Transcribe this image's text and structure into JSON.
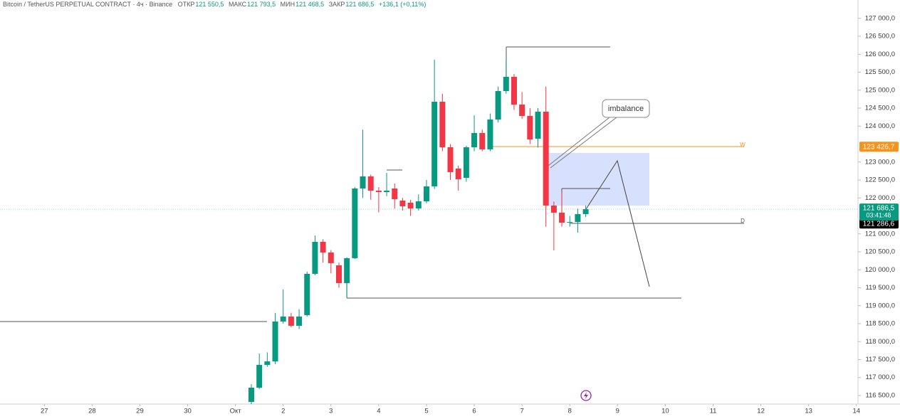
{
  "chart_data": {
    "type": "candlestick",
    "title": "Bitcoin / TetherUS PERPETUAL CONTRACT · 4ч · Binance",
    "legend": {
      "open_label": "ОТКР",
      "open": "121 550,5",
      "high_label": "МАКС",
      "high": "121 793,5",
      "low_label": "МИН",
      "low": "121 468,5",
      "close_label": "ЗАКР",
      "close": "121 686,5",
      "change": "+136,1 (+0,11%)"
    },
    "up_color": "#089981",
    "down_color": "#f23645",
    "open": [
      116322,
      116718,
      117352,
      117450,
      118560,
      118699,
      118441,
      118738,
      119887,
      120778,
      120481,
      120124,
      119629,
      120322,
      122263,
      122599,
      122203,
      122163,
      122263,
      121926,
      121867,
      121708,
      121906,
      122322,
      124678,
      123411,
      122817,
      122560,
      123411,
      123807,
      123352,
      124183,
      124975,
      125371,
      124599,
      124282,
      123649,
      124401,
      121788,
      121590,
      121312,
      121330,
      121550.5
    ],
    "high": [
      116817,
      117670,
      117700,
      118800,
      119450,
      118800,
      118900,
      119950,
      120950,
      120850,
      120550,
      120200,
      120350,
      122300,
      123900,
      122650,
      122300,
      122700,
      122400,
      122000,
      121950,
      122100,
      122500,
      125850,
      124900,
      123500,
      122900,
      123450,
      124300,
      123900,
      124350,
      125100,
      125850,
      125450,
      124950,
      124500,
      124500,
      125100,
      121900,
      122150,
      121500,
      121700,
      121793.5
    ],
    "low": [
      116262,
      116680,
      117300,
      117372,
      118500,
      118400,
      118350,
      118700,
      119850,
      120200,
      119900,
      119500,
      119213,
      120300,
      122000,
      121950,
      121600,
      122050,
      121700,
      121650,
      121500,
      121650,
      121850,
      122250,
      123300,
      122500,
      122200,
      122450,
      123300,
      123300,
      123300,
      124100,
      124900,
      124450,
      124200,
      123500,
      123400,
      121200,
      120540,
      121200,
      121200,
      121035,
      121468.5
    ],
    "close": [
      116718,
      117352,
      117450,
      118560,
      118699,
      118441,
      118699,
      119887,
      120778,
      120481,
      120184,
      119629,
      120322,
      122263,
      122599,
      122203,
      122163,
      122203,
      121966,
      121768,
      121708,
      121906,
      122322,
      124678,
      123411,
      122718,
      122520,
      123411,
      123807,
      123352,
      124183,
      124975,
      125371,
      124599,
      124282,
      123629,
      124401,
      121788,
      121590,
      121312,
      121330,
      121550,
      121686.5
    ],
    "close_label": "121 686,5",
    "countdown": "03:41:48",
    "price_labels": [
      {
        "value": 123426.7,
        "label": "123 426,7",
        "color": "#f7931a"
      },
      {
        "value": 121286.6,
        "label": "121 286,6",
        "color": "#000000"
      }
    ],
    "annotations": {
      "imbalance": "imbalance",
      "weekly": "W",
      "daily": "D"
    },
    "ylim": [
      116262,
      127510
    ],
    "yticks": [
      {
        "value": 116500,
        "label": "116 500,0"
      },
      {
        "value": 117000,
        "label": "117 000,0"
      },
      {
        "value": 117500,
        "label": "117 500,0"
      },
      {
        "value": 118000,
        "label": "118 000,0"
      },
      {
        "value": 118500,
        "label": "118 500,0"
      },
      {
        "value": 119000,
        "label": "119 000,0"
      },
      {
        "value": 119500,
        "label": "119 500,0"
      },
      {
        "value": 120000,
        "label": "120 000,0"
      },
      {
        "value": 120500,
        "label": "120 500,0"
      },
      {
        "value": 121000,
        "label": "121 000,0"
      },
      {
        "value": 122000,
        "label": "122 000,0"
      },
      {
        "value": 122500,
        "label": "122 500,0"
      },
      {
        "value": 123000,
        "label": "123 000,0"
      },
      {
        "value": 124000,
        "label": "124 000,0"
      },
      {
        "value": 124500,
        "label": "124 500,0"
      },
      {
        "value": 125000,
        "label": "125 000,0"
      },
      {
        "value": 125500,
        "label": "125 500,0"
      },
      {
        "value": 126000,
        "label": "126 000,0"
      },
      {
        "value": 126500,
        "label": "126 500,0"
      },
      {
        "value": 127000,
        "label": "127 000,0"
      }
    ],
    "xlim": [
      -31.57,
      76.2
    ],
    "xticks": [
      {
        "value": -26,
        "label": "27"
      },
      {
        "value": -20,
        "label": "28"
      },
      {
        "value": -14,
        "label": "29"
      },
      {
        "value": -8,
        "label": "30"
      },
      {
        "value": -2,
        "label": "Окт"
      },
      {
        "value": 4,
        "label": "2"
      },
      {
        "value": 10,
        "label": "3"
      },
      {
        "value": 16,
        "label": "4"
      },
      {
        "value": 22,
        "label": "5"
      },
      {
        "value": 28,
        "label": "6"
      },
      {
        "value": 34,
        "label": "7"
      },
      {
        "value": 40,
        "label": "8"
      },
      {
        "value": 46,
        "label": "9"
      },
      {
        "value": 52,
        "label": "10"
      },
      {
        "value": 58,
        "label": "11"
      },
      {
        "value": 64,
        "label": "12"
      },
      {
        "value": 70,
        "label": "13"
      },
      {
        "value": 76,
        "label": "14"
      }
    ]
  }
}
